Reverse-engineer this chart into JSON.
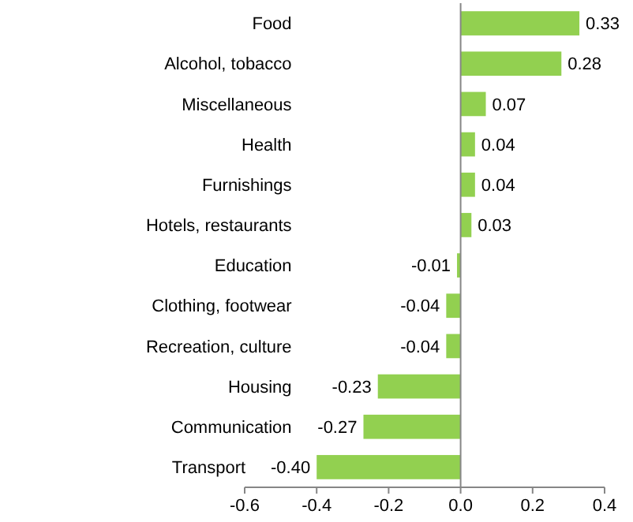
{
  "chart_data": {
    "type": "bar",
    "orientation": "horizontal",
    "categories": [
      "Food",
      "Alcohol, tobacco",
      "Miscellaneous",
      "Health",
      "Furnishings",
      "Hotels, restaurants",
      "Education",
      "Clothing, footwear",
      "Recreation, culture",
      "Housing",
      "Communication",
      "Transport"
    ],
    "values": [
      0.33,
      0.28,
      0.07,
      0.04,
      0.04,
      0.03,
      -0.01,
      -0.04,
      -0.04,
      -0.23,
      -0.27,
      -0.4
    ],
    "value_labels": [
      "0.33",
      "0.28",
      "0.07",
      "0.04",
      "0.04",
      "0.03",
      "-0.01",
      "-0.04",
      "-0.04",
      "-0.23",
      "-0.27",
      "-0.40"
    ],
    "color": "#92d050",
    "xlim": [
      -0.6,
      0.4
    ],
    "xticks": [
      {
        "value": -0.6,
        "label": "-0.6"
      },
      {
        "value": -0.4,
        "label": "-0.4"
      },
      {
        "value": -0.2,
        "label": "-0.2"
      },
      {
        "value": 0,
        "label": "0.0"
      },
      {
        "value": 0.2,
        "label": "0.2"
      },
      {
        "value": 0.4,
        "label": "0.4"
      }
    ]
  }
}
